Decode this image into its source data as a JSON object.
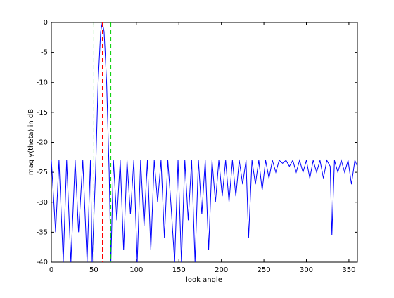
{
  "chart_data": {
    "type": "line",
    "xlabel": "look angle",
    "ylabel": "mag y(theta) in dB",
    "xlim": [
      0,
      360
    ],
    "ylim": [
      -40,
      0
    ],
    "xticks": [
      0,
      50,
      100,
      150,
      200,
      250,
      300,
      350
    ],
    "yticks": [
      0,
      -5,
      -10,
      -15,
      -20,
      -25,
      -30,
      -35,
      -40
    ],
    "grid": false,
    "series": [
      {
        "color": "#0000ff",
        "x": [
          0,
          5,
          9,
          14,
          18,
          23,
          28,
          32,
          37,
          42,
          46,
          48,
          52,
          55,
          58,
          60,
          62,
          65,
          68,
          70,
          73,
          77,
          81,
          85,
          89,
          93,
          97,
          101,
          105,
          109,
          113,
          117,
          121,
          125,
          129,
          133,
          137,
          141,
          145,
          149,
          153,
          157,
          161,
          165,
          169,
          173,
          177,
          181,
          185,
          189,
          193,
          197,
          201,
          205,
          209,
          213,
          217,
          221,
          225,
          229,
          232,
          236,
          240,
          244,
          248,
          252,
          256,
          260,
          264,
          268,
          272,
          276,
          280,
          284,
          288,
          292,
          296,
          300,
          304,
          308,
          312,
          316,
          320,
          324,
          328,
          330,
          333,
          337,
          341,
          345,
          349,
          353,
          357,
          360
        ],
        "values": [
          -23,
          -35,
          -23,
          -40,
          -23,
          -40,
          -23,
          -35,
          -23,
          -40,
          -23,
          -40,
          -25,
          -10,
          -1.5,
          0,
          -1.5,
          -10,
          -25,
          -40,
          -23,
          -33,
          -23,
          -38,
          -23,
          -32,
          -23,
          -40,
          -23,
          -34,
          -23,
          -38,
          -23,
          -30,
          -23,
          -36,
          -23,
          -31,
          -40,
          -23,
          -40,
          -23,
          -33,
          -23,
          -40,
          -23,
          -32,
          -23,
          -38,
          -23,
          -30,
          -23,
          -29,
          -23,
          -30,
          -23,
          -29,
          -23,
          -27,
          -23,
          -36,
          -23,
          -27,
          -23,
          -28,
          -23,
          -26,
          -23,
          -25,
          -23,
          -23.5,
          -23,
          -24,
          -23,
          -25,
          -23,
          -25,
          -23,
          -26,
          -23,
          -25,
          -23,
          -26,
          -23,
          -24,
          -35.5,
          -23,
          -25,
          -23,
          -25,
          -23,
          -27,
          -23,
          -24
        ]
      }
    ],
    "vlines": [
      {
        "x": 50,
        "color": "#00cc00"
      },
      {
        "x": 60,
        "color": "#ff0000"
      },
      {
        "x": 70,
        "color": "#00cc00"
      }
    ]
  }
}
